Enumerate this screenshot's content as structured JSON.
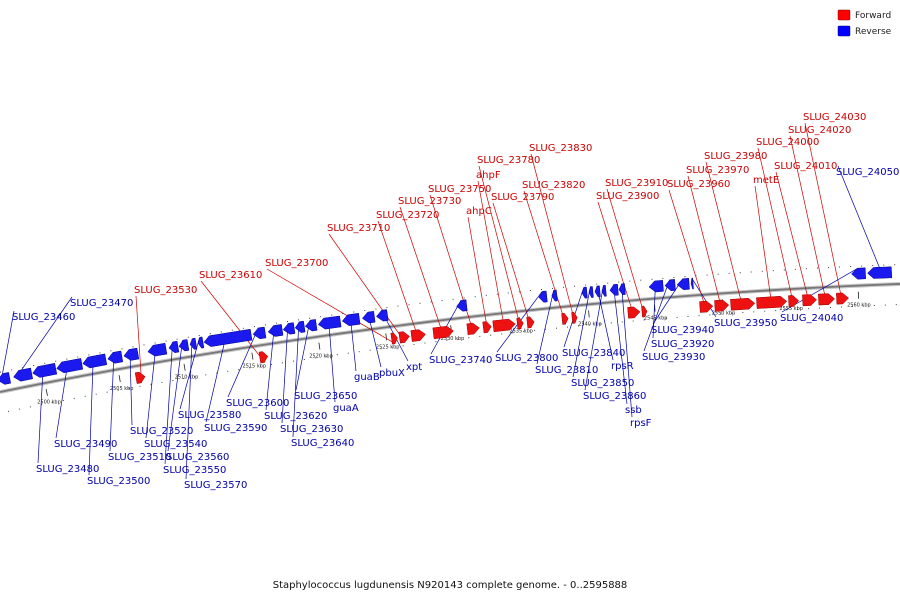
{
  "caption": "Staphylococcus lugdunensis N920143 complete genome. - 0..2595888",
  "legend": {
    "forward": {
      "label": "Forward",
      "color": "#ff0000"
    },
    "reverse": {
      "label": "Reverse",
      "color": "#0000ff"
    }
  },
  "colors": {
    "forward_fill": "#ee1111",
    "reverse_fill": "#1a1aee",
    "forward_text": "#cc0000",
    "reverse_text": "#0000aa",
    "backbone": "#777777"
  },
  "scale_ticks": [
    "2500 kbp",
    "2505 kbp",
    "2510 kbp",
    "2515 kbp",
    "2520 kbp",
    "2525 kbp",
    "2530 kbp",
    "2535 kbp",
    "2540 kbp",
    "2545 kbp",
    "2550 kbp",
    "2555 kbp",
    "2560 kbp"
  ],
  "genes": [
    {
      "name": "SLUG_23460",
      "strand": "reverse"
    },
    {
      "name": "SLUG_23470",
      "strand": "reverse"
    },
    {
      "name": "SLUG_23480",
      "strand": "reverse"
    },
    {
      "name": "SLUG_23490",
      "strand": "reverse"
    },
    {
      "name": "SLUG_23500",
      "strand": "reverse"
    },
    {
      "name": "SLUG_23510",
      "strand": "reverse"
    },
    {
      "name": "SLUG_23520",
      "strand": "reverse"
    },
    {
      "name": "SLUG_23530",
      "strand": "forward"
    },
    {
      "name": "SLUG_23540",
      "strand": "reverse"
    },
    {
      "name": "SLUG_23550",
      "strand": "reverse"
    },
    {
      "name": "SLUG_23560",
      "strand": "reverse"
    },
    {
      "name": "SLUG_23570",
      "strand": "reverse"
    },
    {
      "name": "SLUG_23580",
      "strand": "reverse"
    },
    {
      "name": "SLUG_23590",
      "strand": "reverse"
    },
    {
      "name": "SLUG_23600",
      "strand": "reverse"
    },
    {
      "name": "SLUG_23610",
      "strand": "forward"
    },
    {
      "name": "SLUG_23620",
      "strand": "reverse"
    },
    {
      "name": "SLUG_23630",
      "strand": "reverse"
    },
    {
      "name": "SLUG_23640",
      "strand": "reverse"
    },
    {
      "name": "SLUG_23650",
      "strand": "reverse"
    },
    {
      "name": "guaA",
      "strand": "reverse"
    },
    {
      "name": "guaB",
      "strand": "reverse"
    },
    {
      "name": "pbuX",
      "strand": "reverse"
    },
    {
      "name": "xpt",
      "strand": "reverse"
    },
    {
      "name": "SLUG_23700",
      "strand": "forward"
    },
    {
      "name": "SLUG_23710",
      "strand": "forward"
    },
    {
      "name": "SLUG_23720",
      "strand": "forward"
    },
    {
      "name": "SLUG_23730",
      "strand": "forward"
    },
    {
      "name": "SLUG_23740",
      "strand": "reverse"
    },
    {
      "name": "SLUG_23750",
      "strand": "forward"
    },
    {
      "name": "ahpC",
      "strand": "forward"
    },
    {
      "name": "ahpF",
      "strand": "forward"
    },
    {
      "name": "SLUG_23780",
      "strand": "forward"
    },
    {
      "name": "SLUG_23790",
      "strand": "forward"
    },
    {
      "name": "SLUG_23800",
      "strand": "reverse"
    },
    {
      "name": "SLUG_23810",
      "strand": "reverse"
    },
    {
      "name": "SLUG_23820",
      "strand": "forward"
    },
    {
      "name": "SLUG_23830",
      "strand": "forward"
    },
    {
      "name": "SLUG_23840",
      "strand": "reverse"
    },
    {
      "name": "SLUG_23850",
      "strand": "reverse"
    },
    {
      "name": "rpsR",
      "strand": "reverse"
    },
    {
      "name": "SLUG_23860",
      "strand": "reverse"
    },
    {
      "name": "ssb",
      "strand": "reverse"
    },
    {
      "name": "rpsF",
      "strand": "reverse"
    },
    {
      "name": "SLUG_23900",
      "strand": "forward"
    },
    {
      "name": "SLUG_23910",
      "strand": "forward"
    },
    {
      "name": "SLUG_23920",
      "strand": "reverse"
    },
    {
      "name": "SLUG_23930",
      "strand": "reverse"
    },
    {
      "name": "SLUG_23940",
      "strand": "reverse"
    },
    {
      "name": "SLUG_23950",
      "strand": "reverse"
    },
    {
      "name": "SLUG_23960",
      "strand": "forward"
    },
    {
      "name": "SLUG_23970",
      "strand": "forward"
    },
    {
      "name": "SLUG_23980",
      "strand": "forward"
    },
    {
      "name": "metE",
      "strand": "forward"
    },
    {
      "name": "SLUG_24000",
      "strand": "forward"
    },
    {
      "name": "SLUG_24010",
      "strand": "forward"
    },
    {
      "name": "SLUG_24020",
      "strand": "forward"
    },
    {
      "name": "SLUG_24030",
      "strand": "forward"
    },
    {
      "name": "SLUG_24040",
      "strand": "reverse"
    },
    {
      "name": "SLUG_24050",
      "strand": "reverse"
    }
  ]
}
